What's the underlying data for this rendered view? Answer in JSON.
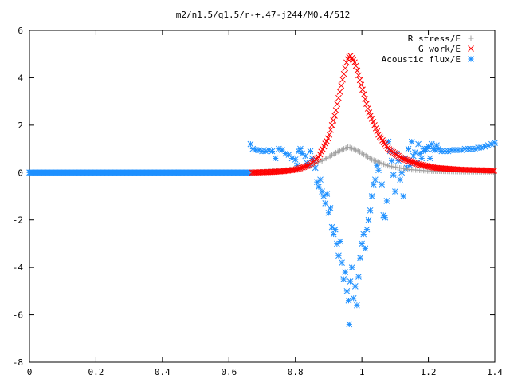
{
  "chart_data": {
    "type": "scatter",
    "title": "m2/n1.5/q1.5/r-+.47-j244/M0.4/512",
    "xlabel": "",
    "ylabel": "",
    "xlim": [
      0,
      1.4
    ],
    "ylim": [
      -8,
      6
    ],
    "x_ticks": [
      "0",
      "0.2",
      "0.4",
      "0.6",
      "0.8",
      "1",
      "1.2",
      "1.4"
    ],
    "y_ticks": [
      "-8",
      "-6",
      "-4",
      "-2",
      "0",
      "2",
      "4",
      "6"
    ],
    "grid": false,
    "legend_position": "top-right",
    "series": [
      {
        "name": "R stress/E",
        "marker": "plus",
        "color": "#a0a0a0",
        "curve": {
          "range": [
            0.67,
            1.4
          ],
          "step": 0.006,
          "zero_before": 0.67,
          "points": [
            [
              0.67,
              0.0
            ],
            [
              0.75,
              0.07
            ],
            [
              0.82,
              0.2
            ],
            [
              0.88,
              0.5
            ],
            [
              0.93,
              0.9
            ],
            [
              0.96,
              1.08
            ],
            [
              0.99,
              0.9
            ],
            [
              1.03,
              0.55
            ],
            [
              1.08,
              0.28
            ],
            [
              1.14,
              0.13
            ],
            [
              1.2,
              0.07
            ],
            [
              1.3,
              0.04
            ],
            [
              1.4,
              0.03
            ]
          ]
        }
      },
      {
        "name": "G work/E",
        "marker": "cross",
        "color": "#ff0000",
        "curve": {
          "range": [
            0.67,
            1.4
          ],
          "step": 0.004,
          "points": [
            [
              0.67,
              0.0
            ],
            [
              0.72,
              0.02
            ],
            [
              0.76,
              0.05
            ],
            [
              0.8,
              0.12
            ],
            [
              0.84,
              0.3
            ],
            [
              0.87,
              0.65
            ],
            [
              0.9,
              1.5
            ],
            [
              0.92,
              2.5
            ],
            [
              0.94,
              3.8
            ],
            [
              0.955,
              4.7
            ],
            [
              0.965,
              4.95
            ],
            [
              0.98,
              4.6
            ],
            [
              1.0,
              3.6
            ],
            [
              1.02,
              2.6
            ],
            [
              1.05,
              1.6
            ],
            [
              1.08,
              1.0
            ],
            [
              1.12,
              0.6
            ],
            [
              1.17,
              0.35
            ],
            [
              1.22,
              0.2
            ],
            [
              1.3,
              0.12
            ],
            [
              1.4,
              0.08
            ]
          ]
        }
      },
      {
        "name": "Acoustic flux/E",
        "marker": "star",
        "color": "#1e90ff",
        "zero_line": {
          "range": [
            0.0,
            0.665
          ],
          "step": 0.003,
          "y": 0.0
        },
        "points": [
          [
            0.665,
            1.2
          ],
          [
            0.672,
            1.0
          ],
          [
            0.68,
            0.95
          ],
          [
            0.69,
            0.95
          ],
          [
            0.7,
            0.9
          ],
          [
            0.71,
            0.9
          ],
          [
            0.72,
            0.95
          ],
          [
            0.73,
            0.9
          ],
          [
            0.74,
            0.6
          ],
          [
            0.75,
            1.0
          ],
          [
            0.76,
            0.95
          ],
          [
            0.77,
            0.8
          ],
          [
            0.78,
            0.75
          ],
          [
            0.79,
            0.6
          ],
          [
            0.8,
            0.55
          ],
          [
            0.805,
            0.3
          ],
          [
            0.81,
            0.9
          ],
          [
            0.815,
            1.0
          ],
          [
            0.82,
            0.8
          ],
          [
            0.83,
            0.7
          ],
          [
            0.835,
            0.4
          ],
          [
            0.84,
            0.3
          ],
          [
            0.845,
            0.9
          ],
          [
            0.85,
            0.6
          ],
          [
            0.855,
            0.5
          ],
          [
            0.86,
            0.2
          ],
          [
            0.865,
            -0.4
          ],
          [
            0.87,
            -0.6
          ],
          [
            0.875,
            -0.3
          ],
          [
            0.88,
            -0.8
          ],
          [
            0.885,
            -1.0
          ],
          [
            0.89,
            -1.3
          ],
          [
            0.895,
            -0.9
          ],
          [
            0.9,
            -1.7
          ],
          [
            0.905,
            -1.5
          ],
          [
            0.91,
            -2.3
          ],
          [
            0.915,
            -2.6
          ],
          [
            0.92,
            -2.4
          ],
          [
            0.925,
            -3.0
          ],
          [
            0.93,
            -3.5
          ],
          [
            0.935,
            -2.9
          ],
          [
            0.94,
            -3.8
          ],
          [
            0.945,
            -4.5
          ],
          [
            0.95,
            -4.2
          ],
          [
            0.955,
            -5.0
          ],
          [
            0.96,
            -5.4
          ],
          [
            0.962,
            -6.4
          ],
          [
            0.965,
            -4.6
          ],
          [
            0.97,
            -4.0
          ],
          [
            0.975,
            -5.3
          ],
          [
            0.98,
            -4.8
          ],
          [
            0.985,
            -5.6
          ],
          [
            0.99,
            -4.4
          ],
          [
            0.995,
            -3.6
          ],
          [
            1.0,
            -3.0
          ],
          [
            1.005,
            -2.6
          ],
          [
            1.01,
            -3.2
          ],
          [
            1.015,
            -2.4
          ],
          [
            1.02,
            -2.0
          ],
          [
            1.025,
            -1.6
          ],
          [
            1.03,
            -1.0
          ],
          [
            1.035,
            -0.5
          ],
          [
            1.04,
            -0.3
          ],
          [
            1.045,
            0.3
          ],
          [
            1.05,
            0.1
          ],
          [
            1.06,
            -0.5
          ],
          [
            1.065,
            -1.8
          ],
          [
            1.07,
            -1.9
          ],
          [
            1.075,
            -1.2
          ],
          [
            1.08,
            1.3
          ],
          [
            1.085,
            0.9
          ],
          [
            1.09,
            0.5
          ],
          [
            1.095,
            -0.1
          ],
          [
            1.1,
            -0.8
          ],
          [
            1.105,
            0.8
          ],
          [
            1.11,
            0.5
          ],
          [
            1.115,
            -0.3
          ],
          [
            1.12,
            0.0
          ],
          [
            1.125,
            -1.0
          ],
          [
            1.13,
            0.6
          ],
          [
            1.135,
            0.2
          ],
          [
            1.14,
            1.0
          ],
          [
            1.145,
            0.3
          ],
          [
            1.15,
            1.3
          ],
          [
            1.155,
            0.7
          ],
          [
            1.16,
            0.85
          ],
          [
            1.165,
            0.4
          ],
          [
            1.17,
            1.2
          ],
          [
            1.175,
            0.8
          ],
          [
            1.18,
            0.6
          ],
          [
            1.185,
            0.9
          ],
          [
            1.19,
            1.0
          ],
          [
            1.195,
            1.0
          ],
          [
            1.2,
            1.1
          ],
          [
            1.205,
            0.6
          ],
          [
            1.21,
            1.2
          ],
          [
            1.215,
            1.0
          ],
          [
            1.22,
            0.95
          ],
          [
            1.225,
            1.15
          ],
          [
            1.23,
            1.0
          ],
          [
            1.24,
            0.9
          ],
          [
            1.25,
            0.9
          ],
          [
            1.26,
            0.9
          ],
          [
            1.27,
            0.95
          ],
          [
            1.28,
            0.95
          ],
          [
            1.29,
            0.95
          ],
          [
            1.3,
            0.95
          ],
          [
            1.31,
            1.0
          ],
          [
            1.32,
            1.0
          ],
          [
            1.33,
            1.0
          ],
          [
            1.34,
            1.0
          ],
          [
            1.35,
            1.05
          ],
          [
            1.36,
            1.05
          ],
          [
            1.37,
            1.1
          ],
          [
            1.38,
            1.15
          ],
          [
            1.39,
            1.2
          ],
          [
            1.4,
            1.25
          ],
          [
            0.45,
            0.0
          ],
          [
            0.6,
            0.0
          ]
        ]
      }
    ]
  }
}
